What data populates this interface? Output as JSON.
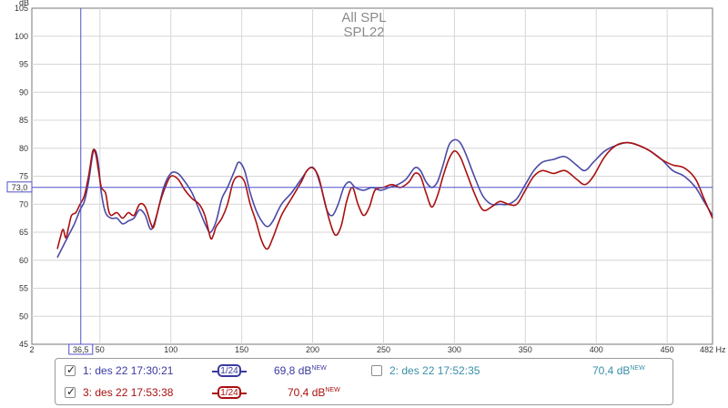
{
  "chart_data": {
    "type": "line",
    "title": "All SPL",
    "subtitle": "SPL22",
    "ylabel": "dB",
    "xunit": "Hz",
    "xlim": [
      2,
      482
    ],
    "ylim": [
      45,
      105
    ],
    "x_ticks": [
      2,
      50,
      100,
      150,
      200,
      250,
      300,
      350,
      400,
      450,
      482
    ],
    "y_ticks": [
      45,
      50,
      55,
      60,
      65,
      70,
      75,
      80,
      85,
      90,
      95,
      100,
      105
    ],
    "cursor": {
      "x": 36.5,
      "x_label": "36,5",
      "y": 73.0,
      "y_label": "73,0"
    },
    "series": [
      {
        "name": "1: des 22 17:30:21",
        "color": "#4a4aa6",
        "points": [
          [
            20,
            60.5
          ],
          [
            24,
            62.5
          ],
          [
            28,
            64.5
          ],
          [
            32,
            66.5
          ],
          [
            36,
            69
          ],
          [
            39,
            70.5
          ],
          [
            42,
            74
          ],
          [
            45,
            79
          ],
          [
            47,
            79.5
          ],
          [
            49,
            77
          ],
          [
            51,
            72
          ],
          [
            54,
            68.5
          ],
          [
            58,
            67.5
          ],
          [
            62,
            67.5
          ],
          [
            66,
            66.5
          ],
          [
            70,
            67
          ],
          [
            74,
            67.5
          ],
          [
            78,
            69
          ],
          [
            82,
            68
          ],
          [
            86,
            65.5
          ],
          [
            90,
            68
          ],
          [
            95,
            73
          ],
          [
            100,
            75.5
          ],
          [
            105,
            75.5
          ],
          [
            110,
            74
          ],
          [
            115,
            72
          ],
          [
            120,
            69
          ],
          [
            125,
            66
          ],
          [
            128,
            65
          ],
          [
            132,
            67
          ],
          [
            136,
            71
          ],
          [
            140,
            73
          ],
          [
            145,
            76
          ],
          [
            148,
            77.5
          ],
          [
            152,
            76
          ],
          [
            156,
            72
          ],
          [
            160,
            69
          ],
          [
            164,
            67
          ],
          [
            168,
            66
          ],
          [
            172,
            67
          ],
          [
            178,
            70
          ],
          [
            185,
            72
          ],
          [
            192,
            74.5
          ],
          [
            198,
            76.5
          ],
          [
            202,
            76
          ],
          [
            206,
            73
          ],
          [
            210,
            69
          ],
          [
            214,
            68
          ],
          [
            218,
            70
          ],
          [
            222,
            73
          ],
          [
            226,
            74
          ],
          [
            230,
            73
          ],
          [
            236,
            72.5
          ],
          [
            242,
            73
          ],
          [
            248,
            72.5
          ],
          [
            254,
            73
          ],
          [
            260,
            73.5
          ],
          [
            266,
            74.5
          ],
          [
            272,
            76.5
          ],
          [
            276,
            76
          ],
          [
            280,
            74
          ],
          [
            284,
            73
          ],
          [
            288,
            74
          ],
          [
            292,
            77
          ],
          [
            296,
            80.5
          ],
          [
            300,
            81.5
          ],
          [
            304,
            81
          ],
          [
            308,
            79
          ],
          [
            314,
            75
          ],
          [
            320,
            71.5
          ],
          [
            326,
            70
          ],
          [
            332,
            70
          ],
          [
            338,
            70
          ],
          [
            344,
            71
          ],
          [
            350,
            73.5
          ],
          [
            356,
            76
          ],
          [
            362,
            77.5
          ],
          [
            370,
            78
          ],
          [
            378,
            78.5
          ],
          [
            386,
            77
          ],
          [
            392,
            76
          ],
          [
            398,
            77.5
          ],
          [
            406,
            79.5
          ],
          [
            414,
            80.5
          ],
          [
            422,
            81
          ],
          [
            430,
            80.5
          ],
          [
            438,
            79.5
          ],
          [
            446,
            78
          ],
          [
            454,
            76
          ],
          [
            462,
            75
          ],
          [
            470,
            73
          ],
          [
            476,
            70.5
          ],
          [
            482,
            68
          ]
        ]
      },
      {
        "name": "3: des 22 17:53:38",
        "color": "#aa1010",
        "points": [
          [
            20,
            62
          ],
          [
            22,
            64
          ],
          [
            24,
            65.5
          ],
          [
            26,
            64
          ],
          [
            28,
            66
          ],
          [
            30,
            68
          ],
          [
            33,
            68.5
          ],
          [
            36,
            70
          ],
          [
            39,
            71.5
          ],
          [
            42,
            75
          ],
          [
            45,
            79.5
          ],
          [
            47,
            79
          ],
          [
            49,
            76
          ],
          [
            51,
            73
          ],
          [
            54,
            72
          ],
          [
            56,
            69
          ],
          [
            58,
            68
          ],
          [
            62,
            68.5
          ],
          [
            66,
            67.5
          ],
          [
            70,
            68.5
          ],
          [
            74,
            68
          ],
          [
            78,
            70
          ],
          [
            82,
            69.5
          ],
          [
            86,
            66.5
          ],
          [
            88,
            66
          ],
          [
            92,
            70
          ],
          [
            96,
            73
          ],
          [
            100,
            75
          ],
          [
            105,
            74.5
          ],
          [
            110,
            72.5
          ],
          [
            115,
            71
          ],
          [
            120,
            70
          ],
          [
            124,
            68
          ],
          [
            128,
            64
          ],
          [
            130,
            64.5
          ],
          [
            132,
            66
          ],
          [
            136,
            67.5
          ],
          [
            140,
            70
          ],
          [
            144,
            74
          ],
          [
            148,
            75
          ],
          [
            152,
            74
          ],
          [
            156,
            70
          ],
          [
            160,
            67
          ],
          [
            164,
            63.5
          ],
          [
            168,
            62
          ],
          [
            172,
            64
          ],
          [
            178,
            68
          ],
          [
            185,
            71
          ],
          [
            192,
            74
          ],
          [
            196,
            76
          ],
          [
            200,
            76.5
          ],
          [
            204,
            75
          ],
          [
            208,
            71
          ],
          [
            212,
            67
          ],
          [
            216,
            64.5
          ],
          [
            220,
            66
          ],
          [
            224,
            70.5
          ],
          [
            228,
            73
          ],
          [
            232,
            70
          ],
          [
            236,
            68
          ],
          [
            240,
            69.5
          ],
          [
            244,
            72.5
          ],
          [
            250,
            73
          ],
          [
            256,
            73.5
          ],
          [
            262,
            73
          ],
          [
            268,
            74
          ],
          [
            272,
            75.5
          ],
          [
            276,
            75
          ],
          [
            280,
            72
          ],
          [
            284,
            69.5
          ],
          [
            288,
            71.5
          ],
          [
            292,
            75
          ],
          [
            296,
            78
          ],
          [
            300,
            79.5
          ],
          [
            304,
            78.5
          ],
          [
            308,
            76
          ],
          [
            314,
            72
          ],
          [
            320,
            69
          ],
          [
            326,
            69.5
          ],
          [
            332,
            70.5
          ],
          [
            338,
            70
          ],
          [
            344,
            70
          ],
          [
            350,
            72.5
          ],
          [
            356,
            75
          ],
          [
            362,
            76
          ],
          [
            370,
            75.5
          ],
          [
            378,
            76
          ],
          [
            386,
            74.5
          ],
          [
            392,
            73.5
          ],
          [
            398,
            75
          ],
          [
            406,
            78.5
          ],
          [
            414,
            80.5
          ],
          [
            422,
            81
          ],
          [
            430,
            80.5
          ],
          [
            438,
            79.5
          ],
          [
            446,
            78
          ],
          [
            454,
            77
          ],
          [
            462,
            76.5
          ],
          [
            470,
            74.5
          ],
          [
            476,
            71
          ],
          [
            482,
            67.5
          ]
        ]
      }
    ]
  },
  "legend": {
    "items": [
      {
        "checked": true,
        "tick": "✓",
        "label": "1: des 22 17:30:21",
        "smoothing": "1/24",
        "level": "69,8 dB",
        "badge": "NEW",
        "color": "#3a3aa0"
      },
      {
        "checked": false,
        "tick": "",
        "label": "2: des 22 17:52:35",
        "smoothing": "",
        "level": "70,4 dB",
        "badge": "NEW",
        "color": "#3a8fa8"
      },
      {
        "checked": true,
        "tick": "✓",
        "label": "3: des 22 17:53:38",
        "smoothing": "1/24",
        "level": "70,4 dB",
        "badge": "NEW",
        "color": "#aa1010"
      }
    ]
  }
}
